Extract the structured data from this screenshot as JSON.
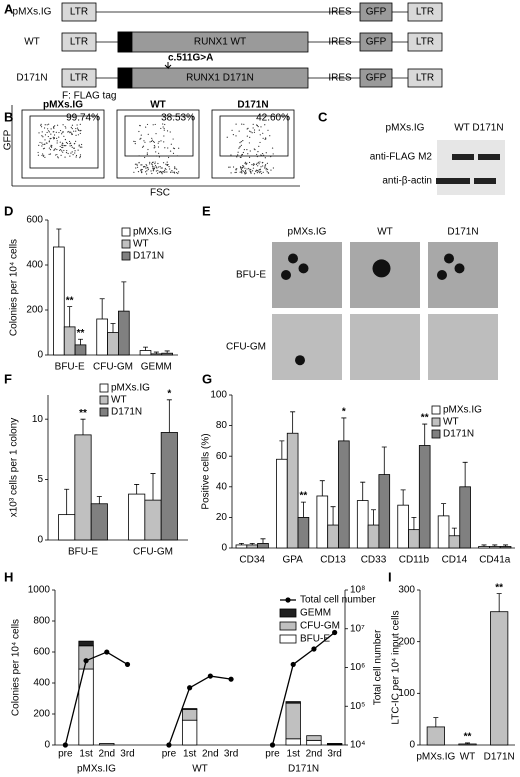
{
  "constructs": {
    "panel": "A",
    "rows": [
      {
        "name": "pMXs.IG",
        "ltr_left": "LTR",
        "ires": "IRES",
        "gfp": "GFP",
        "ltr_right": "LTR"
      },
      {
        "name": "WT",
        "ltr_left": "LTR",
        "flag": "F",
        "runx": "RUNX1 WT",
        "ires": "IRES",
        "gfp": "GFP",
        "ltr_right": "LTR"
      },
      {
        "name": "D171N",
        "ltr_left": "LTR",
        "flag": "F",
        "runx": "RUNX1 D171N",
        "ires": "IRES",
        "gfp": "GFP",
        "ltr_right": "LTR"
      }
    ],
    "mutation": "c.511G>A",
    "legend": "F: FLAG tag"
  },
  "flow": {
    "panel": "B",
    "plots": [
      {
        "title": "pMXs.IG",
        "percent": "99.74%"
      },
      {
        "title": "WT",
        "percent": "38.53%"
      },
      {
        "title": "D171N",
        "percent": "42.60%"
      }
    ],
    "y_label": "GFP",
    "x_label": "FSC"
  },
  "blot": {
    "panel": "C",
    "lanes": [
      "pMXs.IG",
      "WT",
      "D171N"
    ],
    "rows": [
      "anti-FLAG M2",
      "anti-β-actin"
    ]
  },
  "colony_images": {
    "panel": "E",
    "columns": [
      "pMXs.IG",
      "WT",
      "D171N"
    ],
    "rows": [
      "BFU-E",
      "CFU-GM"
    ]
  },
  "chart_data": [
    {
      "type": "bar",
      "panel": "D",
      "y_label": "Colonies per 10⁴ cells",
      "categories": [
        "BFU-E",
        "CFU-GM",
        "GEMM"
      ],
      "series": [
        {
          "name": "pMXs.IG",
          "color": "#ffffff",
          "values": [
            480,
            160,
            20
          ],
          "errors": [
            80,
            90,
            15
          ]
        },
        {
          "name": "WT",
          "color": "#c0c0c0",
          "values": [
            125,
            100,
            5
          ],
          "errors": [
            90,
            40,
            8
          ]
        },
        {
          "name": "D171N",
          "color": "#808080",
          "values": [
            45,
            195,
            8
          ],
          "errors": [
            25,
            130,
            10
          ]
        }
      ],
      "ylim": [
        0,
        600
      ],
      "yticks": [
        0,
        200,
        400,
        600
      ],
      "annotations": [
        "**",
        "**"
      ]
    },
    {
      "type": "bar",
      "panel": "F",
      "y_label": "x10³ cells per 1 colony",
      "categories": [
        "BFU-E",
        "CFU-GM"
      ],
      "series": [
        {
          "name": "pMXs.IG",
          "color": "#ffffff",
          "values": [
            2.1,
            3.8
          ],
          "errors": [
            2.1,
            0.8
          ]
        },
        {
          "name": "WT",
          "color": "#c0c0c0",
          "values": [
            8.7,
            3.3
          ],
          "errors": [
            1.3,
            2.2
          ]
        },
        {
          "name": "D171N",
          "color": "#808080",
          "values": [
            3.0,
            8.9
          ],
          "errors": [
            0.6,
            2.7
          ]
        }
      ],
      "ylim": [
        0,
        12
      ],
      "yticks": [
        0,
        5,
        10
      ],
      "annotations": [
        "**",
        "*"
      ]
    },
    {
      "type": "bar",
      "panel": "G",
      "y_label": "Positive cells (%)",
      "categories": [
        "CD34",
        "GPA",
        "CD13",
        "CD33",
        "CD11b",
        "CD14",
        "CD41a"
      ],
      "series": [
        {
          "name": "pMXs.IG",
          "color": "#ffffff",
          "values": [
            2,
            58,
            34,
            31,
            28,
            21,
            1
          ],
          "errors": [
            1,
            12,
            10,
            12,
            10,
            8,
            1
          ]
        },
        {
          "name": "WT",
          "color": "#c0c0c0",
          "values": [
            2,
            75,
            15,
            15,
            12,
            8,
            1
          ],
          "errors": [
            1,
            14,
            12,
            10,
            8,
            5,
            1
          ]
        },
        {
          "name": "D171N",
          "color": "#808080",
          "values": [
            3,
            20,
            70,
            48,
            67,
            40,
            1
          ],
          "errors": [
            3,
            10,
            15,
            18,
            14,
            16,
            1
          ]
        }
      ],
      "ylim": [
        0,
        100
      ],
      "yticks": [
        0,
        20,
        40,
        60,
        80,
        100
      ],
      "annotations": [
        "**",
        "*",
        "**"
      ]
    },
    {
      "type": "stacked_bar_line",
      "panel": "H",
      "y_label": "Colonies per 10⁴ cells",
      "y2_label": "Total cell number",
      "categories": [
        "pre",
        "1st",
        "2nd",
        "3rd",
        null,
        "pre",
        "1st",
        "2nd",
        "3rd",
        null,
        "pre",
        "1st",
        "2nd",
        "3rd"
      ],
      "groups": [
        "pMXs.IG",
        "WT",
        "D171N"
      ],
      "series": [
        {
          "name": "BFU-E",
          "color": "#ffffff",
          "values": [
            null,
            490,
            0,
            0,
            null,
            null,
            160,
            0,
            0,
            null,
            null,
            40,
            30,
            5
          ]
        },
        {
          "name": "CFU-GM",
          "color": "#c0c0c0",
          "values": [
            null,
            150,
            10,
            0,
            null,
            null,
            70,
            0,
            0,
            null,
            null,
            230,
            30,
            5
          ]
        },
        {
          "name": "GEMM",
          "color": "#202020",
          "values": [
            null,
            30,
            0,
            0,
            null,
            null,
            5,
            0,
            0,
            null,
            null,
            10,
            0,
            0
          ]
        },
        {
          "name": "Total cell number",
          "color": "#000000",
          "axis": "y2",
          "values": [
            10000,
            1500000,
            2500000,
            1200000,
            null,
            10000,
            300000,
            600000,
            500000,
            null,
            10000,
            1200000,
            3000000,
            8000000
          ]
        }
      ],
      "ylim": [
        0,
        1000
      ],
      "yticks": [
        0,
        200,
        400,
        600,
        800,
        1000
      ],
      "y2lim": [
        10000,
        100000000
      ],
      "y2_log": true,
      "y2ticks": [
        {
          "value": 10000,
          "label": "10⁴"
        },
        {
          "value": 100000,
          "label": "10⁵"
        },
        {
          "value": 1000000,
          "label": "10⁶"
        },
        {
          "value": 10000000,
          "label": "10⁷"
        },
        {
          "value": 100000000,
          "label": "10⁸"
        }
      ]
    },
    {
      "type": "bar",
      "panel": "I",
      "y_label": "LTC-IC per 10⁴ input cells",
      "categories": [
        "pMXs.IG",
        "WT",
        "D171N"
      ],
      "series": [
        {
          "color": "#c0c0c0",
          "values": [
            35,
            2,
            258
          ],
          "errors": [
            18,
            2,
            35
          ]
        }
      ],
      "ylim": [
        0,
        300
      ],
      "yticks": [
        0,
        100,
        200,
        300
      ],
      "annotations": [
        "**",
        "**"
      ]
    }
  ]
}
